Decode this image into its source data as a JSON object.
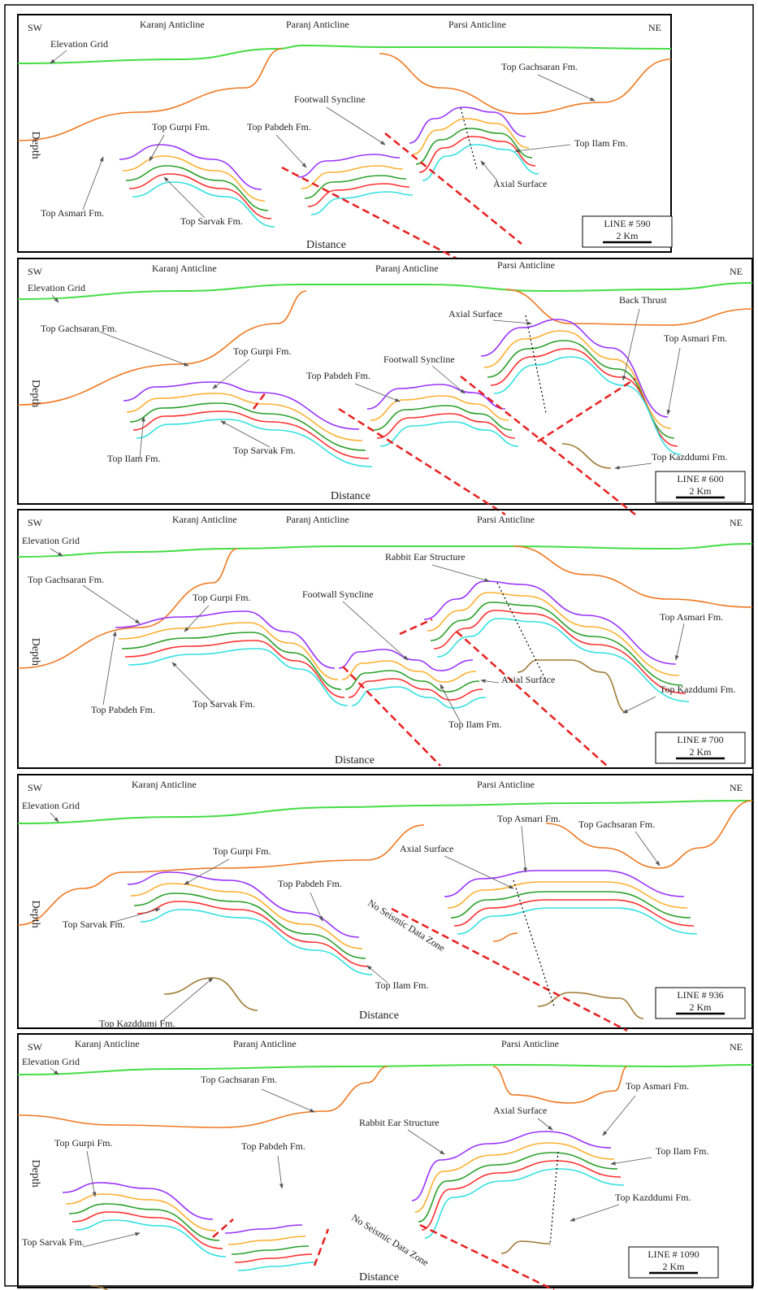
{
  "panels": [
    {
      "sw": "SW",
      "ne": "NE",
      "anticlines": [
        "Karanj Anticline",
        "Paranj Anticline",
        "Parsi Anticline"
      ],
      "labels": [
        "Elevation Grid",
        "Top Gachsaran Fm.",
        "Footwall Syncline",
        "Top Pabdeh Fm.",
        "Top Gurpi Fm.",
        "Top Ilam Fm.",
        "Axial Surface",
        "Top Asmari Fm.",
        "Top Sarvak Fm."
      ],
      "axis_x": "Distance",
      "axis_y": "Depth",
      "line": "LINE # 590",
      "scale": "2 Km"
    },
    {
      "sw": "SW",
      "ne": "NE",
      "anticlines": [
        "Karanj Anticline",
        "Paranj Anticline",
        "Parsi Anticline"
      ],
      "labels": [
        "Elevation Grid",
        "Top Gachsaran Fm.",
        "Axial Surface",
        "Back Thrust",
        "Top Gurpi Fm.",
        "Footwall Syncline",
        "Top Asmari Fm.",
        "Top Pabdeh Fm.",
        "Top Ilam Fm.",
        "Top Sarvak Fm.",
        "Top Kazddumi Fm."
      ],
      "axis_x": "Distance",
      "axis_y": "Depth",
      "line": "LINE # 600",
      "scale": "2 Km"
    },
    {
      "sw": "SW",
      "ne": "NE",
      "anticlines": [
        "Karanj Anticline",
        "Paranj Anticline",
        "Parsi Anticline"
      ],
      "labels": [
        "Elevation Grid",
        "Rabbit Ear Structure",
        "Top Gachsaran Fm.",
        "Top Gurpi Fm.",
        "Footwall Syncline",
        "Top Asmari Fm.",
        "Axial Surface",
        "Top Kazddumi Fm.",
        "Top Pabdeh Fm.",
        "Top Sarvak Fm.",
        "Top Ilam Fm."
      ],
      "axis_x": "Distance",
      "axis_y": "Depth",
      "line": "LINE # 700",
      "scale": "2 Km"
    },
    {
      "sw": "SW",
      "ne": "NE",
      "anticlines": [
        "Karanj Anticline",
        "Parsi Anticline"
      ],
      "labels": [
        "Elevation Grid",
        "Top Gachsaran Fm.",
        "Top Asmari Fm.",
        "Axial Surface",
        "Top Gurpi Fm.",
        "Top Pabdeh Fm.",
        "No Seismic Data Zone",
        "Top Sarvak Fm.",
        "Top Ilam Fm.",
        "Top Kazddumi Fm."
      ],
      "axis_x": "Distance",
      "axis_y": "Depth",
      "line": "LINE # 936",
      "scale": "2 Km"
    },
    {
      "sw": "SW",
      "ne": "NE",
      "anticlines": [
        "Karanj Anticline",
        "Paranj Anticline",
        "Parsi Anticline"
      ],
      "labels": [
        "Elevation Grid",
        "Top Gachsaran Fm.",
        "Top Asmari Fm.",
        "Axial Surface",
        "Rabbit Ear Structure",
        "Top Gurpi Fm.",
        "Top Pabdeh Fm.",
        "Top Ilam Fm.",
        "Top Kazddumi Fm.",
        "No Seismic Data Zone",
        "Top Sarvak Fm."
      ],
      "axis_x": "Distance",
      "axis_y": "Depth",
      "line": "LINE # 1090",
      "scale": "2 Km"
    }
  ]
}
